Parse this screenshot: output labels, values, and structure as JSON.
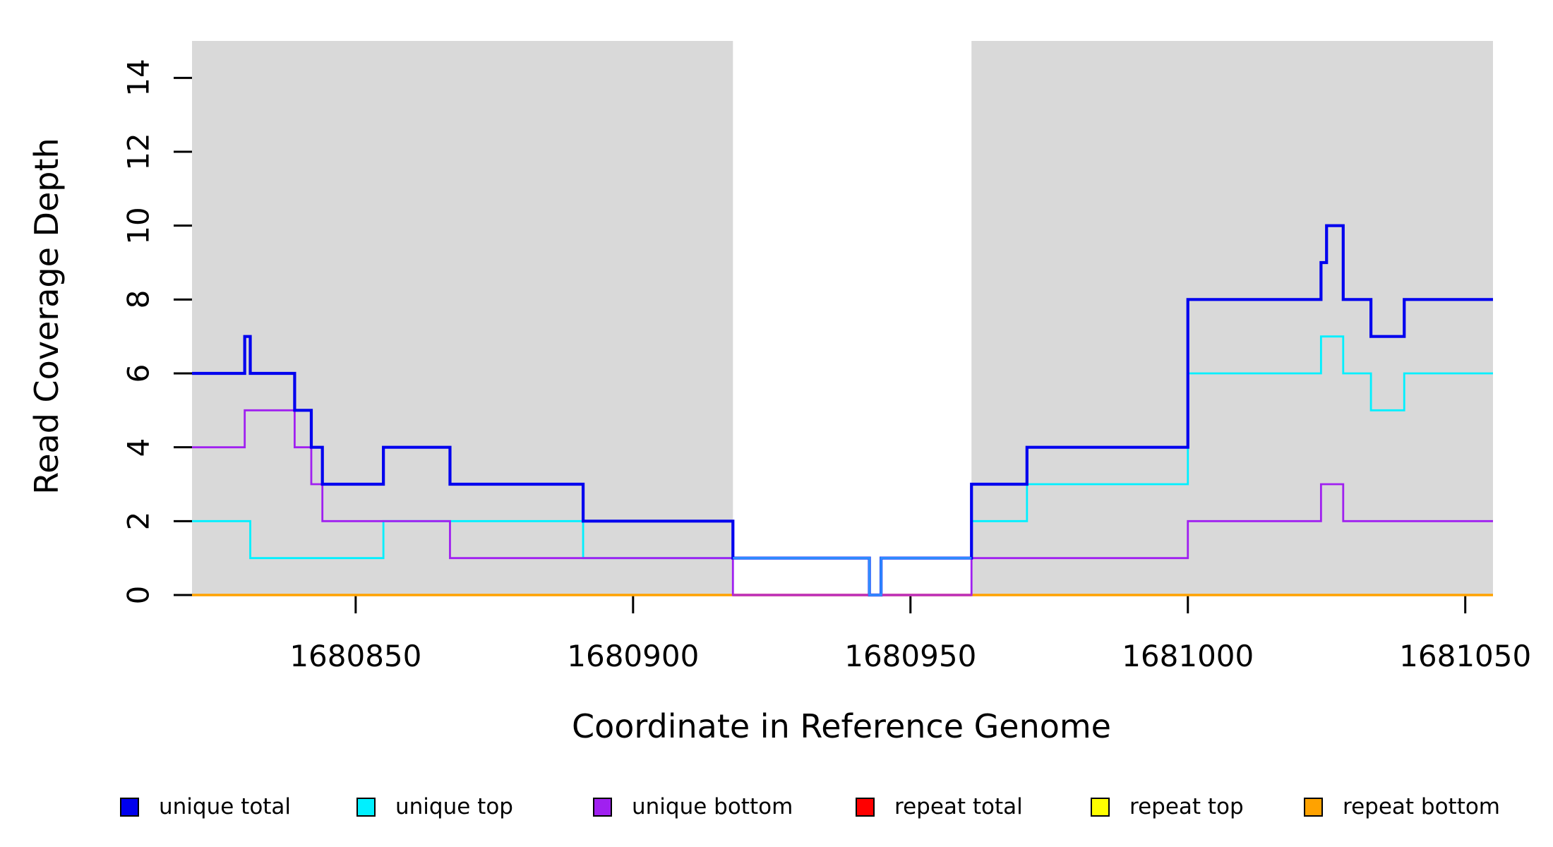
{
  "figure": {
    "xlabel": "Coordinate in Reference Genome",
    "ylabel": "Read Coverage Depth"
  },
  "chart_data": {
    "type": "step-line",
    "title": "",
    "xlabel": "Coordinate in Reference Genome",
    "ylabel": "Read Coverage Depth",
    "xlim": [
      1680820.5,
      1681055
    ],
    "ylim": [
      0,
      15
    ],
    "xticks": [
      1680850,
      1680900,
      1680950,
      1681000,
      1681050
    ],
    "yticks": [
      0,
      2,
      4,
      6,
      8,
      10,
      12,
      14
    ],
    "grid": false,
    "legend_position": "bottom",
    "background_shading": {
      "color": "#d9d9d9",
      "regions": [
        [
          1680820.5,
          1680918
        ],
        [
          1680961,
          1681055
        ]
      ],
      "note": "gray shaded unique-mappability regions; white gap between 1680918 and 1680961"
    },
    "series": [
      {
        "name": "unique total",
        "color": "#0000ee",
        "end": 1681055,
        "steps": [
          [
            1680820.5,
            6
          ],
          [
            1680830,
            7
          ],
          [
            1680831,
            6
          ],
          [
            1680839,
            5
          ],
          [
            1680842,
            4
          ],
          [
            1680844,
            3
          ],
          [
            1680855,
            4
          ],
          [
            1680867,
            3
          ],
          [
            1680891,
            2
          ],
          [
            1680918,
            1
          ],
          [
            1680942.6,
            0
          ],
          [
            1680944.7,
            1
          ],
          [
            1680961,
            3
          ],
          [
            1680971,
            4
          ],
          [
            1681000,
            8
          ],
          [
            1681024,
            9
          ],
          [
            1681025,
            10
          ],
          [
            1681028,
            8
          ],
          [
            1681033,
            7
          ],
          [
            1681039,
            8
          ]
        ]
      },
      {
        "name": "unique top",
        "color": "#00f0ff",
        "end": 1681055,
        "steps": [
          [
            1680820.5,
            2
          ],
          [
            1680831,
            1
          ],
          [
            1680855,
            2
          ],
          [
            1680891,
            1
          ],
          [
            1680942.6,
            0
          ],
          [
            1680944.7,
            1
          ],
          [
            1680961,
            2
          ],
          [
            1680971,
            3
          ],
          [
            1681000,
            6
          ],
          [
            1681024,
            7
          ],
          [
            1681028,
            6
          ],
          [
            1681033,
            5
          ],
          [
            1681039,
            6
          ]
        ]
      },
      {
        "name": "unique bottom",
        "color": "#a020f0",
        "end": 1681055,
        "steps": [
          [
            1680820.5,
            4
          ],
          [
            1680830,
            5
          ],
          [
            1680839,
            4
          ],
          [
            1680842,
            3
          ],
          [
            1680844,
            2
          ],
          [
            1680867,
            1
          ],
          [
            1680918,
            0
          ],
          [
            1680961,
            1
          ],
          [
            1681000,
            2
          ],
          [
            1681024,
            3
          ],
          [
            1681028,
            2
          ]
        ]
      },
      {
        "name": "repeat total",
        "color": "#ff0000",
        "end": 1681055,
        "steps": [
          [
            1680820.5,
            0
          ]
        ]
      },
      {
        "name": "repeat top",
        "color": "#ffff00",
        "end": 1681055,
        "steps": [
          [
            1680820.5,
            0
          ]
        ]
      },
      {
        "name": "repeat bottom",
        "color": "#ffa200",
        "end": 1681055,
        "steps": [
          [
            1680820.5,
            0
          ]
        ]
      }
    ],
    "overlay_segments": [
      {
        "name": "gap-bottom-blend",
        "color": "#bd2fbd",
        "end": 1680961,
        "steps": [
          [
            1680918,
            0
          ]
        ],
        "note": "in the unshaded gap the zero line appears magenta (unique bottom over repeat bottom)"
      },
      {
        "name": "gap-unique-total-blend",
        "color": "#2e8bff",
        "end": 1680961,
        "steps": [
          [
            1680918,
            1
          ],
          [
            1680942.6,
            0
          ],
          [
            1680944.7,
            1
          ]
        ],
        "note": "in the unshaded gap the depth-1 coverage line appears medium bright blue"
      }
    ],
    "legend": {
      "entries": [
        {
          "label": "unique total",
          "color": "#0000ee"
        },
        {
          "label": "unique top",
          "color": "#00f0ff"
        },
        {
          "label": "unique bottom",
          "color": "#a020f0"
        },
        {
          "label": "repeat total",
          "color": "#ff0000"
        },
        {
          "label": "repeat top",
          "color": "#ffff00"
        },
        {
          "label": "repeat bottom",
          "color": "#ffa200"
        }
      ]
    }
  }
}
